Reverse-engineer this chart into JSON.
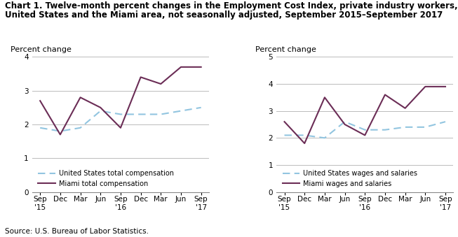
{
  "title_line1": "Chart 1. Twelve-month percent changes in the Employment Cost Index, private industry workers,",
  "title_line2": "United States and the Miami area, not seasonally adjusted, September 2015–September 2017",
  "title_fontsize": 8.5,
  "source": "Source: U.S. Bureau of Labor Statistics.",
  "x_labels": [
    "Sep\n'15",
    "Dec",
    "Mar",
    "Jun",
    "Sep\n'16",
    "Dec",
    "Mar",
    "Jun",
    "Sep\n'17"
  ],
  "left_chart": {
    "ylabel": "Percent change",
    "ylim": [
      0.0,
      4.0
    ],
    "yticks": [
      0.0,
      1.0,
      2.0,
      3.0,
      4.0
    ],
    "us_total_comp": [
      1.9,
      1.8,
      1.9,
      2.4,
      2.3,
      2.3,
      2.3,
      2.4,
      2.5
    ],
    "miami_total_comp": [
      2.7,
      1.7,
      2.8,
      2.5,
      1.9,
      3.4,
      3.2,
      3.7,
      3.7
    ],
    "legend1": "United States total compensation",
    "legend2": "Miami total compensation"
  },
  "right_chart": {
    "ylabel": "Percent change",
    "ylim": [
      0.0,
      5.0
    ],
    "yticks": [
      0.0,
      1.0,
      2.0,
      3.0,
      4.0,
      5.0
    ],
    "us_wages_salaries": [
      2.1,
      2.1,
      2.0,
      2.6,
      2.3,
      2.3,
      2.4,
      2.4,
      2.6
    ],
    "miami_wages_salaries": [
      2.6,
      1.8,
      3.5,
      2.5,
      2.1,
      3.6,
      3.1,
      3.9,
      3.9
    ],
    "legend1": "United States wages and salaries",
    "legend2": "Miami wages and salaries"
  },
  "us_line_color": "#92C5E0",
  "miami_line_color": "#6B2D56",
  "us_line_style": "--",
  "miami_line_style": "-",
  "line_width": 1.5,
  "grid_color": "#BBBBBB",
  "background_color": "#FFFFFF"
}
